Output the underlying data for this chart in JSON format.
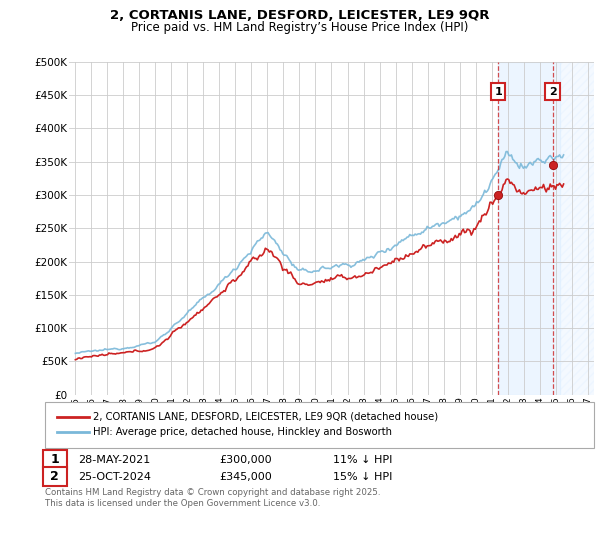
{
  "title": "2, CORTANIS LANE, DESFORD, LEICESTER, LE9 9QR",
  "subtitle": "Price paid vs. HM Land Registry’s House Price Index (HPI)",
  "ylim": [
    0,
    500000
  ],
  "yticks": [
    0,
    50000,
    100000,
    150000,
    200000,
    250000,
    300000,
    350000,
    400000,
    450000,
    500000
  ],
  "ytick_labels": [
    "£0",
    "£50K",
    "£100K",
    "£150K",
    "£200K",
    "£250K",
    "£300K",
    "£350K",
    "£400K",
    "£450K",
    "£500K"
  ],
  "xlim_start": 1994.6,
  "xlim_end": 2027.4,
  "xticks": [
    1995,
    1996,
    1997,
    1998,
    1999,
    2000,
    2001,
    2002,
    2003,
    2004,
    2005,
    2006,
    2007,
    2008,
    2009,
    2010,
    2011,
    2012,
    2013,
    2014,
    2015,
    2016,
    2017,
    2018,
    2019,
    2020,
    2021,
    2022,
    2023,
    2024,
    2025,
    2026,
    2027
  ],
  "grid_color": "#cccccc",
  "hpi_color": "#7ab8d9",
  "price_color": "#cc2222",
  "sale1_x": 2021.41,
  "sale1_y": 300000,
  "sale2_x": 2024.82,
  "sale2_y": 345000,
  "sale1_label": "28-MAY-2021",
  "sale1_price": "£300,000",
  "sale1_note": "11% ↓ HPI",
  "sale2_label": "25-OCT-2024",
  "sale2_price": "£345,000",
  "sale2_note": "15% ↓ HPI",
  "legend_line1": "2, CORTANIS LANE, DESFORD, LEICESTER, LE9 9QR (detached house)",
  "legend_line2": "HPI: Average price, detached house, Hinckley and Bosworth",
  "footer": "Contains HM Land Registry data © Crown copyright and database right 2025.\nThis data is licensed under the Open Government Licence v3.0.",
  "background_color": "#ffffff",
  "shaded_color": "#ddeeff",
  "hatch_color": "#ccddee"
}
